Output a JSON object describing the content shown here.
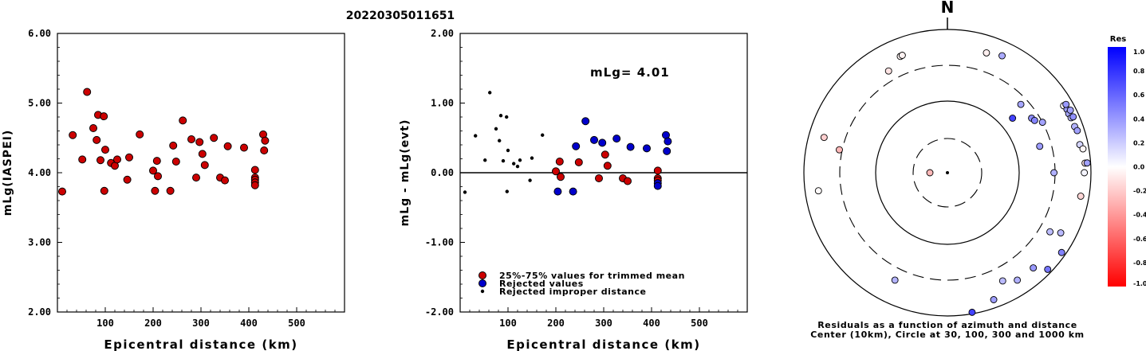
{
  "chart_data": [
    {
      "type": "scatter",
      "title": "20220305011651",
      "xlabel": "Epicentral distance (km)",
      "ylabel": "mLg(IASPEI)",
      "xlim": [
        0,
        600
      ],
      "ylim": [
        2.0,
        6.0
      ],
      "x_ticks": [
        "100",
        "200",
        "300",
        "400",
        "500"
      ],
      "y_ticks": [
        "2.00",
        "3.00",
        "4.00",
        "5.00",
        "6.00"
      ],
      "series": [
        {
          "marker_color": "#cc0000",
          "points": [
            [
              10,
              3.73
            ],
            [
              32,
              4.54
            ],
            [
              52,
              4.19
            ],
            [
              62,
              5.16
            ],
            [
              75,
              4.64
            ],
            [
              82,
              4.47
            ],
            [
              85,
              4.83
            ],
            [
              90,
              4.18
            ],
            [
              97,
              4.81
            ],
            [
              100,
              4.33
            ],
            [
              98,
              3.74
            ],
            [
              112,
              4.14
            ],
            [
              120,
              4.1
            ],
            [
              125,
              4.19
            ],
            [
              146,
              3.9
            ],
            [
              150,
              4.22
            ],
            [
              172,
              4.55
            ],
            [
              200,
              4.03
            ],
            [
              204,
              3.74
            ],
            [
              208,
              4.17
            ],
            [
              210,
              3.95
            ],
            [
              236,
              3.74
            ],
            [
              242,
              4.39
            ],
            [
              248,
              4.16
            ],
            [
              262,
              4.75
            ],
            [
              280,
              4.48
            ],
            [
              290,
              3.93
            ],
            [
              297,
              4.44
            ],
            [
              303,
              4.27
            ],
            [
              308,
              4.11
            ],
            [
              327,
              4.5
            ],
            [
              340,
              3.93
            ],
            [
              350,
              3.89
            ],
            [
              356,
              4.38
            ],
            [
              390,
              4.36
            ],
            [
              413,
              4.04
            ],
            [
              413,
              3.93
            ],
            [
              413,
              3.9
            ],
            [
              413,
              3.86
            ],
            [
              413,
              3.82
            ],
            [
              430,
              4.55
            ],
            [
              432,
              4.32
            ],
            [
              434,
              4.46
            ]
          ]
        }
      ]
    },
    {
      "type": "scatter",
      "xlabel": "Epicentral distance (km)",
      "ylabel": "mLg - mLg(evt)",
      "xlim": [
        0,
        600
      ],
      "ylim": [
        -2.0,
        2.0
      ],
      "x_ticks": [
        "100",
        "200",
        "300",
        "400",
        "500"
      ],
      "y_ticks": [
        "-2.00",
        "-1.00",
        "0.00",
        "1.00",
        "2.00"
      ],
      "annotation": "mLg= 4.01",
      "reference_line": 0.0,
      "legend": [
        {
          "label": "25%-75% values for trimmed mean",
          "color": "#cc0000"
        },
        {
          "label": "Rejected values",
          "color": "#0000cc"
        },
        {
          "label": "Rejected improper distance",
          "color": "#000000"
        }
      ],
      "series": [
        {
          "name": "25%-75% values for trimmed mean",
          "color": "#cc0000",
          "points": [
            [
              200,
              0.02
            ],
            [
              208,
              0.16
            ],
            [
              210,
              -0.06
            ],
            [
              248,
              0.15
            ],
            [
              290,
              -0.08
            ],
            [
              303,
              0.26
            ],
            [
              308,
              0.1
            ],
            [
              340,
              -0.08
            ],
            [
              350,
              -0.12
            ],
            [
              413,
              0.03
            ],
            [
              413,
              -0.08
            ],
            [
              413,
              -0.11
            ]
          ]
        },
        {
          "name": "Rejected values",
          "color": "#0000cc",
          "points": [
            [
              204,
              -0.27
            ],
            [
              236,
              -0.27
            ],
            [
              242,
              0.38
            ],
            [
              262,
              0.74
            ],
            [
              280,
              0.47
            ],
            [
              297,
              0.43
            ],
            [
              327,
              0.49
            ],
            [
              356,
              0.37
            ],
            [
              390,
              0.35
            ],
            [
              413,
              -0.15
            ],
            [
              413,
              -0.19
            ],
            [
              430,
              0.54
            ],
            [
              432,
              0.31
            ],
            [
              434,
              0.45
            ]
          ]
        },
        {
          "name": "Rejected improper distance",
          "color": "#000000",
          "points": [
            [
              10,
              -0.28
            ],
            [
              32,
              0.53
            ],
            [
              52,
              0.18
            ],
            [
              62,
              1.15
            ],
            [
              75,
              0.63
            ],
            [
              82,
              0.46
            ],
            [
              85,
              0.82
            ],
            [
              90,
              0.17
            ],
            [
              97,
              0.8
            ],
            [
              100,
              0.32
            ],
            [
              98,
              -0.27
            ],
            [
              112,
              0.13
            ],
            [
              120,
              0.09
            ],
            [
              125,
              0.18
            ],
            [
              146,
              -0.11
            ],
            [
              150,
              0.21
            ],
            [
              172,
              0.54
            ]
          ]
        }
      ]
    },
    {
      "type": "scatter",
      "subtype": "polar",
      "north_label": "N",
      "caption_line1": "Residuals as a function of azimuth and distance",
      "caption_line2": "Center (10km), Circle at 30, 100, 300 and 1000 km",
      "rings_km": [
        30,
        100,
        300,
        1000
      ],
      "colorbar": {
        "title": "Res",
        "min": -1.0,
        "max": 1.0,
        "ticks": [
          "1.0",
          "0.8",
          "0.6",
          "0.4",
          "0.2",
          "0.0",
          "-0.2",
          "-0.4",
          "-0.6",
          "-0.8",
          "-1.0"
        ],
        "high_color": "#0000ff",
        "low_color": "#ff0000"
      },
      "stations": [
        {
          "azimuth_deg": 270,
          "distance_km": 10,
          "residual": -0.28
        },
        {
          "azimuth_deg": 330,
          "distance_km": 420,
          "residual": -0.11
        },
        {
          "azimuth_deg": 338,
          "distance_km": 550,
          "residual": -0.03
        },
        {
          "azimuth_deg": 339,
          "distance_km": 555,
          "residual": -0.05
        },
        {
          "azimuth_deg": 286,
          "distance_km": 600,
          "residual": -0.19
        },
        {
          "azimuth_deg": 282,
          "distance_km": 330,
          "residual": -0.28
        },
        {
          "azimuth_deg": 262,
          "distance_km": 640,
          "residual": -0.02
        },
        {
          "azimuth_deg": 206,
          "distance_km": 450,
          "residual": 0.3
        },
        {
          "azimuth_deg": 18,
          "distance_km": 560,
          "residual": -0.06
        },
        {
          "azimuth_deg": 25,
          "distance_km": 620,
          "residual": 0.33
        },
        {
          "azimuth_deg": 50,
          "distance_km": 150,
          "residual": 0.74
        },
        {
          "azimuth_deg": 57,
          "distance_km": 240,
          "residual": 0.45
        },
        {
          "azimuth_deg": 59,
          "distance_km": 250,
          "residual": 0.48
        },
        {
          "azimuth_deg": 47,
          "distance_km": 240,
          "residual": 0.35
        },
        {
          "azimuth_deg": 62,
          "distance_km": 300,
          "residual": 0.36
        },
        {
          "azimuth_deg": 74,
          "distance_km": 210,
          "residual": 0.39
        },
        {
          "azimuth_deg": 90,
          "distance_km": 290,
          "residual": 0.31
        },
        {
          "azimuth_deg": 60,
          "distance_km": 730,
          "residual": -0.02
        },
        {
          "azimuth_deg": 62,
          "distance_km": 760,
          "residual": 0.38
        },
        {
          "azimuth_deg": 64,
          "distance_km": 750,
          "residual": 0.35
        },
        {
          "azimuth_deg": 66,
          "distance_km": 760,
          "residual": 0.27
        },
        {
          "azimuth_deg": 60,
          "distance_km": 800,
          "residual": 0.4
        },
        {
          "azimuth_deg": 63,
          "distance_km": 830,
          "residual": 0.36
        },
        {
          "azimuth_deg": 66,
          "distance_km": 820,
          "residual": 0.43
        },
        {
          "azimuth_deg": 70,
          "distance_km": 760,
          "residual": 0.3
        },
        {
          "azimuth_deg": 72,
          "distance_km": 790,
          "residual": 0.37
        },
        {
          "azimuth_deg": 78,
          "distance_km": 760,
          "residual": 0.17
        },
        {
          "azimuth_deg": 80,
          "distance_km": 820,
          "residual": -0.04
        },
        {
          "azimuth_deg": 86,
          "distance_km": 830,
          "residual": -0.11
        },
        {
          "azimuth_deg": 90,
          "distance_km": 800,
          "residual": 0.04
        },
        {
          "azimuth_deg": 86,
          "distance_km": 890,
          "residual": 0.37
        },
        {
          "azimuth_deg": 100,
          "distance_km": 760,
          "residual": -0.16
        },
        {
          "azimuth_deg": 120,
          "distance_km": 430,
          "residual": 0.26
        },
        {
          "azimuth_deg": 118,
          "distance_km": 600,
          "residual": 0.27
        },
        {
          "azimuth_deg": 138,
          "distance_km": 600,
          "residual": 0.4
        },
        {
          "azimuth_deg": 153,
          "distance_km": 480,
          "residual": 0.27
        },
        {
          "azimuth_deg": 147,
          "distance_km": 600,
          "residual": 0.31
        },
        {
          "azimuth_deg": 160,
          "distance_km": 760,
          "residual": 0.38
        },
        {
          "azimuth_deg": 125,
          "distance_km": 870,
          "residual": 0.49
        },
        {
          "azimuth_deg": 134,
          "distance_km": 870,
          "residual": 0.54
        },
        {
          "azimuth_deg": 170,
          "distance_km": 950,
          "residual": 0.74
        }
      ]
    }
  ]
}
